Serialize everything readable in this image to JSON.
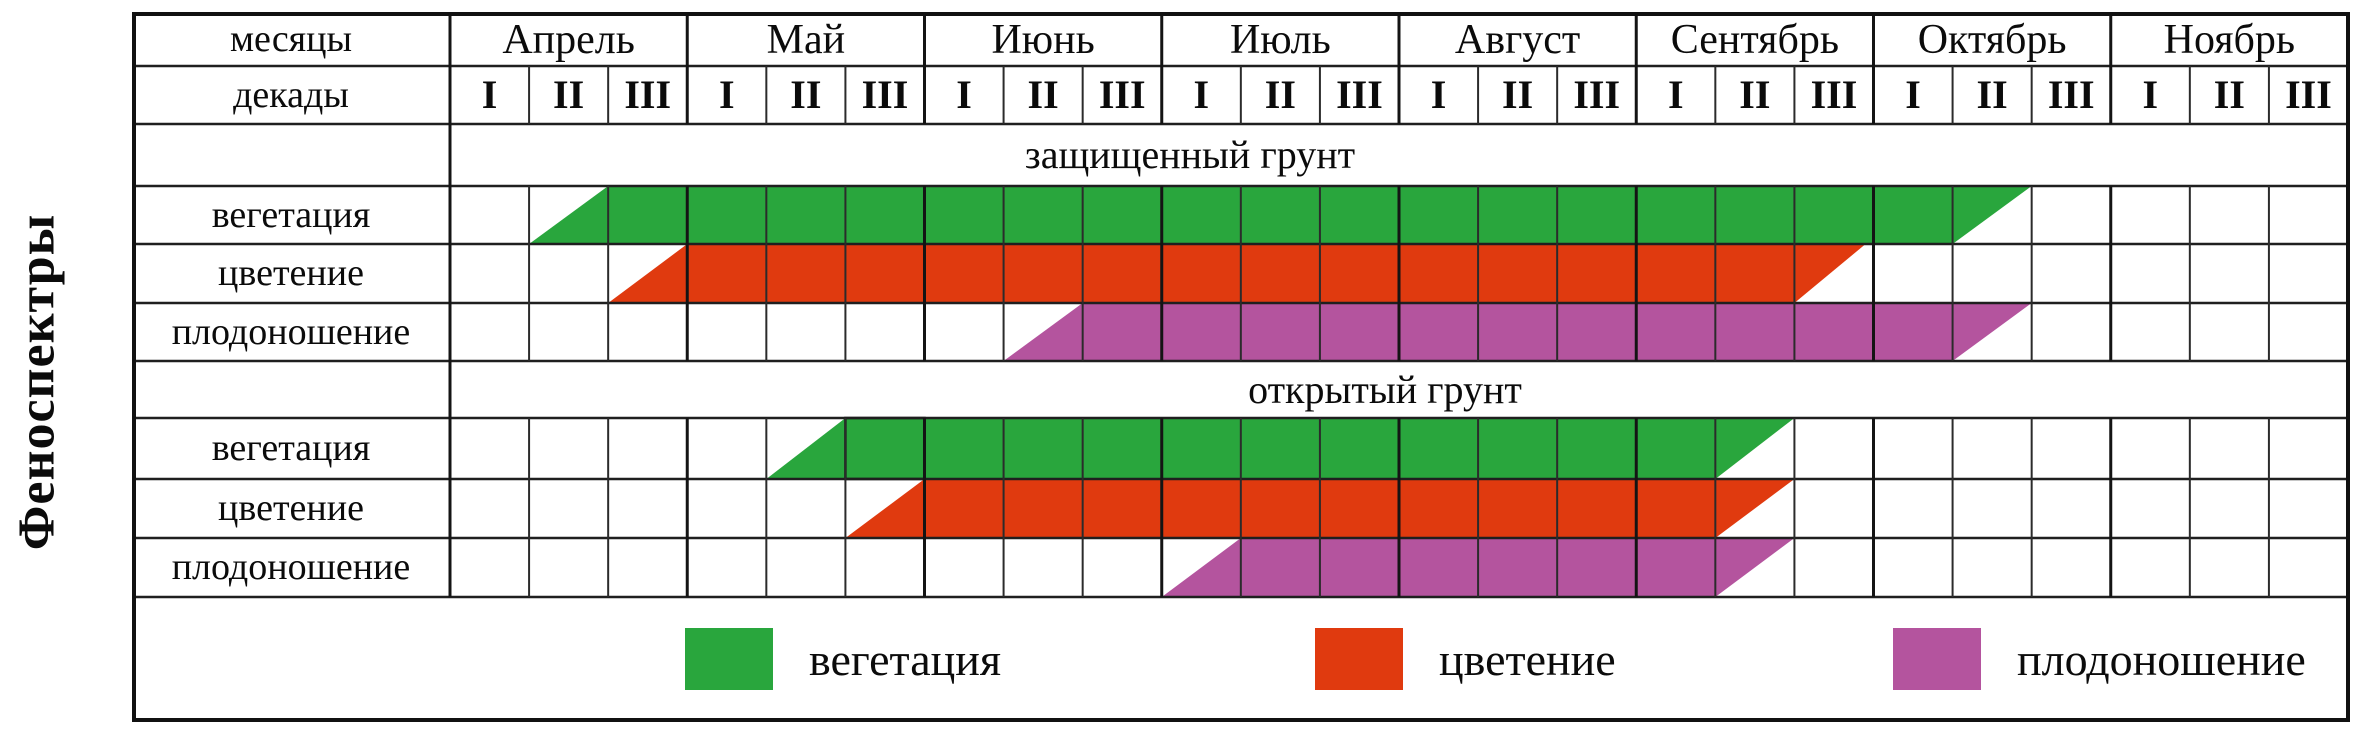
{
  "y_axis_label": "Феноспектры",
  "table": {
    "months_label": "месяцы",
    "decades_label": "декады",
    "months": [
      "Апрель",
      "Май",
      "Июнь",
      "Июль",
      "Август",
      "Сентябрь",
      "Октябрь",
      "Ноябрь"
    ],
    "decades": [
      "I",
      "II",
      "III"
    ]
  },
  "legend": [
    {
      "label": "вегетация",
      "color": "#29A63D"
    },
    {
      "label": "цветение",
      "color": "#E03A0F"
    },
    {
      "label": "плодоношение",
      "color": "#B4549E"
    }
  ],
  "colors": {
    "vegetation": "#29A63D",
    "flowering": "#E03A0F",
    "fruiting": "#B4549E",
    "grid_line": "#1f1f1f"
  },
  "chart_data": {
    "type": "bar",
    "title": "Феноспектры",
    "x_axis": {
      "months": [
        "Апрель",
        "Май",
        "Июнь",
        "Июль",
        "Август",
        "Сентябрь",
        "Октябрь",
        "Ноябрь"
      ],
      "decades_per_month": [
        "I",
        "II",
        "III"
      ],
      "unit": "декады; 0 = начало I декады апреля, 24 = конец III декады ноября"
    },
    "ramp_semantics": "ramp_in = восходящая диагональ (начало фазы в середине декады); full = интервал полной полосы; ramp_out = нисходящая диагональ (окончание фазы)",
    "groups": [
      {
        "name": "защищенный грунт",
        "series": [
          {
            "name": "вегетация",
            "color": "#29A63D",
            "ramp_in": [
              1,
              2
            ],
            "full": [
              2,
              19
            ],
            "ramp_out": [
              19,
              20
            ],
            "period": "со II декады апреля по II декаду октября"
          },
          {
            "name": "цветение",
            "color": "#E03A0F",
            "ramp_in": [
              2,
              3
            ],
            "full": [
              3,
              17
            ],
            "ramp_out": [
              17,
              17.9
            ],
            "period": "с III декады апреля по III декаду сентября"
          },
          {
            "name": "плодоношение",
            "color": "#B4549E",
            "ramp_in": [
              7,
              8
            ],
            "full": [
              8,
              19
            ],
            "ramp_out": [
              19,
              20
            ],
            "period": "со II декады июня по II декаду октября"
          }
        ]
      },
      {
        "name": "открытый грунт",
        "series": [
          {
            "name": "вегетация",
            "color": "#29A63D",
            "ramp_in": [
              4,
              5
            ],
            "full": [
              5,
              16
            ],
            "ramp_out": [
              16,
              17
            ],
            "period": "со II декады мая по II декаду сентября"
          },
          {
            "name": "цветение",
            "color": "#E03A0F",
            "ramp_in": [
              5,
              6
            ],
            "full": [
              6,
              16
            ],
            "ramp_out": [
              16,
              17
            ],
            "period": "с III декады мая по II декаду сентября"
          },
          {
            "name": "плодоношение",
            "color": "#B4549E",
            "ramp_in": [
              9,
              10
            ],
            "full": [
              10,
              16
            ],
            "ramp_out": [
              16,
              17
            ],
            "period": "с I декады июля по II декаду сентября"
          }
        ]
      }
    ]
  }
}
